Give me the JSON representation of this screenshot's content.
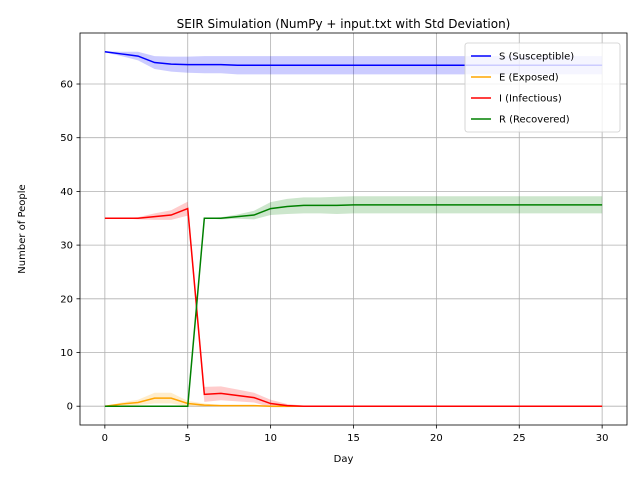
{
  "chart_data": {
    "type": "line",
    "title": "SEIR Simulation (NumPy + input.txt with Std Deviation)",
    "xlabel": "Day",
    "ylabel": "Number of People",
    "xlim": [
      -1.5,
      31.5
    ],
    "ylim": [
      -3.5,
      69.5
    ],
    "xticks": [
      0,
      5,
      10,
      15,
      20,
      25,
      30
    ],
    "yticks": [
      0,
      10,
      20,
      30,
      40,
      50,
      60
    ],
    "grid": true,
    "legend_position": "top-right",
    "x": [
      0,
      1,
      2,
      3,
      4,
      5,
      6,
      7,
      8,
      9,
      10,
      11,
      12,
      13,
      14,
      15,
      16,
      17,
      18,
      19,
      20,
      21,
      22,
      23,
      24,
      25,
      26,
      27,
      28,
      29,
      30
    ],
    "series": [
      {
        "name": "S (Susceptible)",
        "color": "#0000ff",
        "values": [
          66,
          65.6,
          65.2,
          64,
          63.7,
          63.6,
          63.6,
          63.6,
          63.5,
          63.5,
          63.5,
          63.5,
          63.5,
          63.5,
          63.5,
          63.5,
          63.5,
          63.5,
          63.5,
          63.5,
          63.5,
          63.5,
          63.5,
          63.5,
          63.5,
          63.5,
          63.5,
          63.5,
          63.5,
          63.5,
          63.5
        ],
        "std": [
          0.1,
          0.4,
          0.8,
          1.2,
          1.4,
          1.5,
          1.6,
          1.6,
          1.7,
          1.7,
          1.7,
          1.7,
          1.7,
          1.7,
          1.7,
          1.7,
          1.7,
          1.7,
          1.7,
          1.7,
          1.7,
          1.7,
          1.7,
          1.7,
          1.7,
          1.7,
          1.7,
          1.7,
          1.7,
          1.7,
          1.7
        ]
      },
      {
        "name": "E (Exposed)",
        "color": "#ffa500",
        "values": [
          0,
          0.4,
          0.7,
          1.5,
          1.5,
          0.5,
          0.2,
          0.1,
          0.1,
          0.1,
          0,
          0,
          0,
          0,
          0,
          0,
          0,
          0,
          0,
          0,
          0,
          0,
          0,
          0,
          0,
          0,
          0,
          0,
          0,
          0,
          0
        ],
        "std": [
          0,
          0.3,
          0.5,
          1,
          1,
          0.5,
          0.3,
          0.1,
          0.1,
          0.1,
          0,
          0,
          0,
          0,
          0,
          0,
          0,
          0,
          0,
          0,
          0,
          0,
          0,
          0,
          0,
          0,
          0,
          0,
          0,
          0,
          0
        ]
      },
      {
        "name": "I (Infectious)",
        "color": "#ff0000",
        "values": [
          35,
          35,
          35,
          35.3,
          35.6,
          36.8,
          2.2,
          2.4,
          2,
          1.6,
          0.5,
          0.1,
          0,
          0,
          0,
          0,
          0,
          0,
          0,
          0,
          0,
          0,
          0,
          0,
          0,
          0,
          0,
          0,
          0,
          0,
          0
        ],
        "std": [
          0,
          0,
          0.2,
          0.6,
          0.9,
          1.3,
          1.4,
          1.3,
          1.1,
          0.9,
          0.7,
          0.3,
          0.1,
          0.1,
          0,
          0,
          0,
          0,
          0,
          0,
          0,
          0,
          0,
          0,
          0,
          0,
          0,
          0,
          0,
          0,
          0
        ]
      },
      {
        "name": "R (Recovered)",
        "color": "#008000",
        "values": [
          0,
          0,
          0,
          0,
          0,
          0,
          35,
          35,
          35.3,
          35.6,
          36.8,
          37.2,
          37.4,
          37.4,
          37.4,
          37.5,
          37.5,
          37.5,
          37.5,
          37.5,
          37.5,
          37.5,
          37.5,
          37.5,
          37.5,
          37.5,
          37.5,
          37.5,
          37.5,
          37.5,
          37.5
        ],
        "std": [
          0,
          0,
          0,
          0,
          0,
          0,
          0,
          0.2,
          0.4,
          0.8,
          1.2,
          1.4,
          1.5,
          1.5,
          1.6,
          1.6,
          1.6,
          1.6,
          1.6,
          1.6,
          1.6,
          1.6,
          1.6,
          1.6,
          1.6,
          1.6,
          1.6,
          1.6,
          1.6,
          1.6,
          1.6
        ]
      }
    ]
  }
}
